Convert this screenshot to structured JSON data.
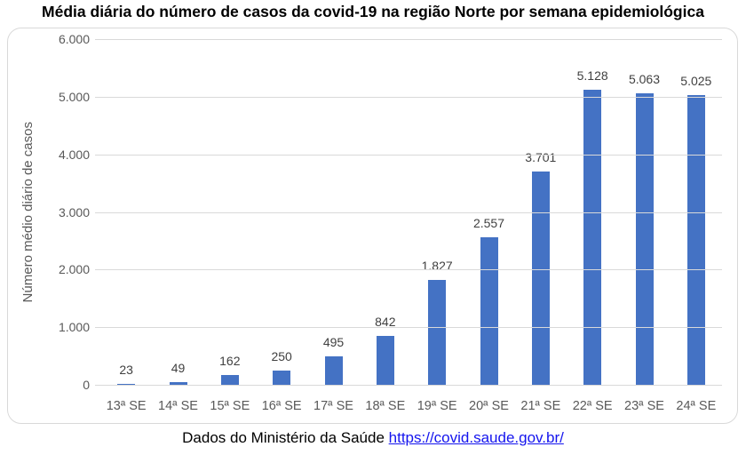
{
  "chart_data": {
    "type": "bar",
    "title": "Média diária do número de casos da covid-19 na região Norte por semana epidemiológica",
    "xlabel": "",
    "ylabel": "Número médio diário de casos",
    "categories": [
      "13ª SE",
      "14ª SE",
      "15ª SE",
      "16ª SE",
      "17ª SE",
      "18ª SE",
      "19ª SE",
      "20ª SE",
      "21ª SE",
      "22ª SE",
      "23ª SE",
      "24ª SE"
    ],
    "values": [
      23,
      49,
      162,
      250,
      495,
      842,
      1827,
      2557,
      3701,
      5128,
      5063,
      5025
    ],
    "value_labels": [
      "23",
      "49",
      "162",
      "250",
      "495",
      "842",
      "1.827",
      "2.557",
      "3.701",
      "5.128",
      "5.063",
      "5.025"
    ],
    "ylim": [
      0,
      6000
    ],
    "y_ticks": [
      0,
      1000,
      2000,
      3000,
      4000,
      5000,
      6000
    ],
    "y_tick_labels": [
      "0",
      "1.000",
      "2.000",
      "3.000",
      "4.000",
      "5.000",
      "6.000"
    ],
    "grid": "horizontal",
    "legend": "none",
    "colors": {
      "bar_fill": "#4472c4",
      "gridline": "#d9d9d9",
      "axis_text": "#595959",
      "data_label_text": "#404040",
      "title_text": "#000000",
      "frame_border": "#d9d9d9"
    }
  },
  "footer": {
    "text_prefix": "Dados do Ministério da Saúde ",
    "link_text": "https://covid.saude.gov.br/",
    "link_color": "#1414ee"
  }
}
